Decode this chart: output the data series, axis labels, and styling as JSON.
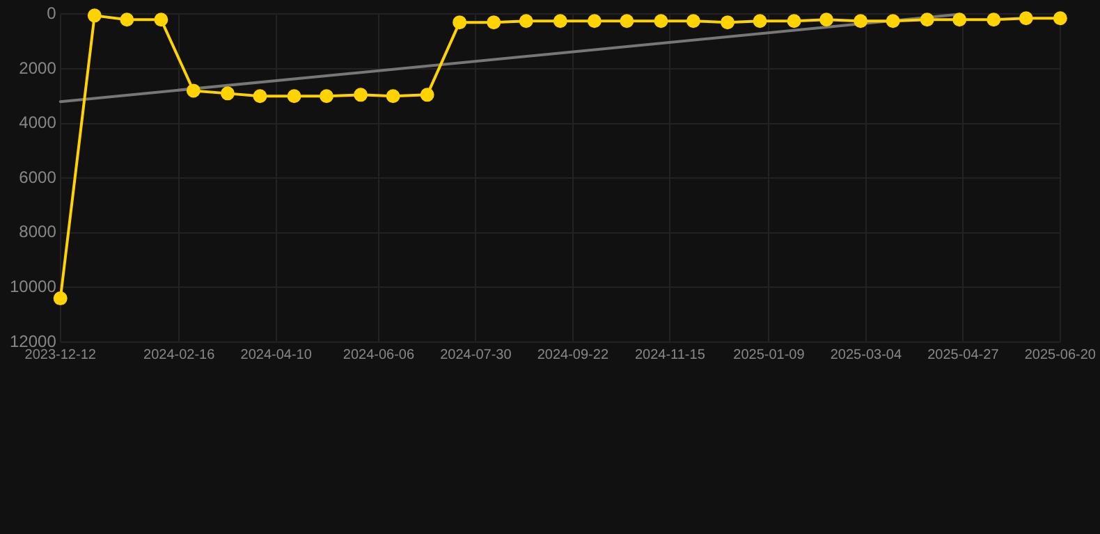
{
  "chart_data": {
    "type": "line",
    "x": [
      "2023-12-12",
      "2023-12-31",
      "2024-01-18",
      "2024-02-06",
      "2024-02-24",
      "2024-03-14",
      "2024-04-01",
      "2024-04-20",
      "2024-05-08",
      "2024-05-27",
      "2024-06-14",
      "2024-07-03",
      "2024-07-21",
      "2024-08-09",
      "2024-08-27",
      "2024-09-15",
      "2024-10-04",
      "2024-10-22",
      "2024-11-10",
      "2024-11-28",
      "2024-12-17",
      "2025-01-04",
      "2025-01-23",
      "2025-02-10",
      "2025-03-01",
      "2025-03-19",
      "2025-04-07",
      "2025-04-25",
      "2025-05-14",
      "2025-06-01",
      "2025-06-20"
    ],
    "series": [
      {
        "color": "#ffd300",
        "values": [
          10400,
          50,
          200,
          200,
          2800,
          2900,
          3000,
          3000,
          3000,
          2950,
          3000,
          2950,
          300,
          300,
          250,
          250,
          250,
          250,
          250,
          250,
          300,
          250,
          250,
          200,
          250,
          250,
          200,
          200,
          200,
          150,
          150
        ]
      },
      {
        "type": "line",
        "color": "#777777",
        "marker": "none",
        "x": [
          "2023-12-12",
          "2025-04-25"
        ],
        "values": [
          3200,
          0
        ]
      }
    ],
    "xlim": [
      "2023-12-12",
      "2025-06-20"
    ],
    "xticks": [
      "2023-12-12",
      "2024-02-16",
      "2024-04-10",
      "2024-06-06",
      "2024-07-30",
      "2024-09-22",
      "2024-11-15",
      "2025-01-09",
      "2025-03-04",
      "2025-04-27",
      "2025-06-20"
    ],
    "ylim": [
      12000,
      0
    ],
    "yticks": [
      0,
      2000,
      4000,
      6000,
      8000,
      10000,
      12000
    ],
    "grid": true,
    "marker": "circle",
    "legend": false
  }
}
